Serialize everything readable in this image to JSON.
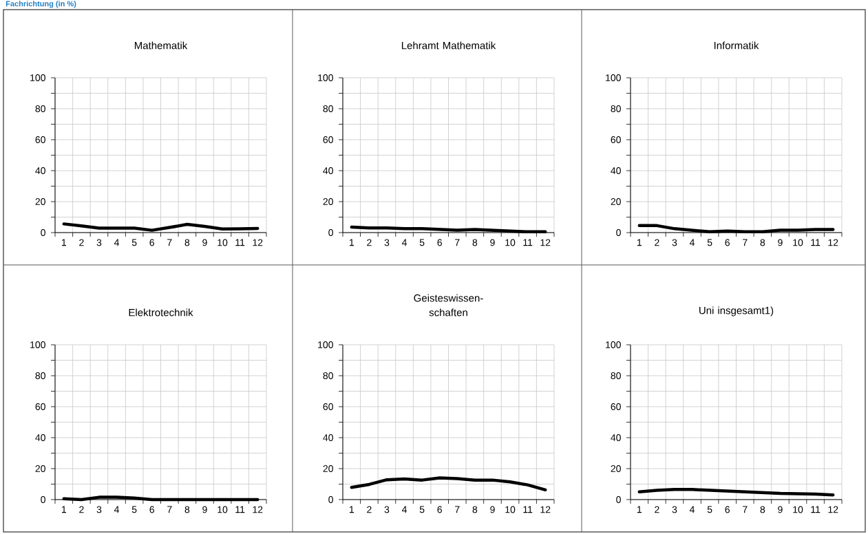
{
  "chart_data": [
    {
      "type": "line",
      "title": "Mathematik",
      "annotations": [
        "Fachrichtung (in %)"
      ],
      "categories": [
        "1",
        "2",
        "3",
        "4",
        "5",
        "6",
        "7",
        "8",
        "9",
        "10",
        "11",
        "12"
      ],
      "series": [
        {
          "color": "#000000",
          "values": [
            5.6,
            4.3,
            2.9,
            2.9,
            2.9,
            1.5,
            3.3,
            5.3,
            4,
            2.3,
            2.4,
            2.7
          ]
        }
      ],
      "ylim": [
        0,
        100
      ],
      "yticks": [
        0,
        20,
        40,
        60,
        80,
        100,
        {
          "value": 10,
          "label": null
        },
        {
          "value": 30,
          "label": null
        },
        {
          "value": 50,
          "label": null
        },
        {
          "value": 70,
          "label": null
        },
        {
          "value": 90,
          "label": null
        }
      ],
      "grid": true,
      "marker": "none",
      "line_style": "solid"
    },
    {
      "type": "line",
      "title": "Lehramt Mathematik",
      "categories": [
        "1",
        "2",
        "3",
        "4",
        "5",
        "6",
        "7",
        "8",
        "9",
        "10",
        "11",
        "12"
      ],
      "series": [
        {
          "color": "#000000",
          "values": [
            3.5,
            3,
            3,
            2.5,
            2.5,
            2,
            1.5,
            2,
            1.5,
            1,
            0.5,
            0.5
          ]
        }
      ],
      "ylim": [
        0,
        100
      ],
      "yticks": [
        0,
        20,
        40,
        60,
        80,
        100,
        {
          "value": 10,
          "label": null
        },
        {
          "value": 30,
          "label": null
        },
        {
          "value": 50,
          "label": null
        },
        {
          "value": 70,
          "label": null
        },
        {
          "value": 90,
          "label": null
        }
      ],
      "grid": true,
      "marker": "none",
      "line_style": "solid"
    },
    {
      "type": "line",
      "title": "Informatik",
      "categories": [
        "1",
        "2",
        "3",
        "4",
        "5",
        "6",
        "7",
        "8",
        "9",
        "10",
        "11",
        "12"
      ],
      "series": [
        {
          "color": "#000000",
          "values": [
            4.5,
            4.5,
            2.5,
            1.5,
            0.5,
            1,
            0.5,
            0.5,
            1.5,
            1.5,
            2,
            2
          ]
        }
      ],
      "ylim": [
        0,
        100
      ],
      "yticks": [
        0,
        20,
        40,
        60,
        80,
        100,
        {
          "value": 10,
          "label": null
        },
        {
          "value": 30,
          "label": null
        },
        {
          "value": 50,
          "label": null
        },
        {
          "value": 70,
          "label": null
        },
        {
          "value": 90,
          "label": null
        }
      ],
      "grid": true,
      "marker": "none",
      "line_style": "solid"
    },
    {
      "type": "line",
      "title": "Elektrotechnik",
      "categories": [
        "1",
        "2",
        "3",
        "4",
        "5",
        "6",
        "7",
        "8",
        "9",
        "10",
        "11",
        "12"
      ],
      "series": [
        {
          "color": "#000000",
          "values": [
            0.5,
            0,
            1.5,
            1.5,
            1,
            0,
            0,
            0,
            0,
            0,
            0,
            0
          ]
        }
      ],
      "ylim": [
        0,
        100
      ],
      "yticks": [
        0,
        20,
        40,
        60,
        80,
        100,
        {
          "value": 10,
          "label": null
        },
        {
          "value": 30,
          "label": null
        },
        {
          "value": 50,
          "label": null
        },
        {
          "value": 70,
          "label": null
        },
        {
          "value": 90,
          "label": null
        }
      ],
      "grid": true,
      "marker": "none",
      "line_style": "solid"
    },
    {
      "type": "line",
      "title": "Geisteswissen-schaften",
      "categories": [
        "1",
        "2",
        "3",
        "4",
        "5",
        "6",
        "7",
        "8",
        "9",
        "10",
        "11",
        "12"
      ],
      "series": [
        {
          "color": "#000000",
          "values": [
            7.9,
            9.8,
            12.8,
            13.3,
            12.6,
            14,
            13.5,
            12.6,
            12.6,
            11.4,
            9.5,
            6.3
          ]
        }
      ],
      "ylim": [
        0,
        100
      ],
      "yticks": [
        0,
        20,
        40,
        60,
        80,
        100,
        {
          "value": 10,
          "label": null
        },
        {
          "value": 30,
          "label": null
        },
        {
          "value": 50,
          "label": null
        },
        {
          "value": 70,
          "label": null
        },
        {
          "value": 90,
          "label": null
        }
      ],
      "grid": true,
      "marker": "none",
      "line_style": "solid"
    },
    {
      "type": "line",
      "title": "Uni insgesamt1)",
      "categories": [
        "1",
        "2",
        "3",
        "4",
        "5",
        "6",
        "7",
        "8",
        "9",
        "10",
        "11",
        "12"
      ],
      "series": [
        {
          "color": "#000000",
          "values": [
            5,
            6,
            6.5,
            6.5,
            6,
            5.5,
            5,
            4.5,
            4,
            3.8,
            3.5,
            3
          ]
        }
      ],
      "ylim": [
        0,
        100
      ],
      "yticks": [
        0,
        20,
        40,
        60,
        80,
        100,
        {
          "value": 10,
          "label": null
        },
        {
          "value": 30,
          "label": null
        },
        {
          "value": 50,
          "label": null
        },
        {
          "value": 70,
          "label": null
        },
        {
          "value": 90,
          "label": null
        }
      ],
      "grid": true,
      "marker": "none",
      "line_style": "solid"
    }
  ]
}
